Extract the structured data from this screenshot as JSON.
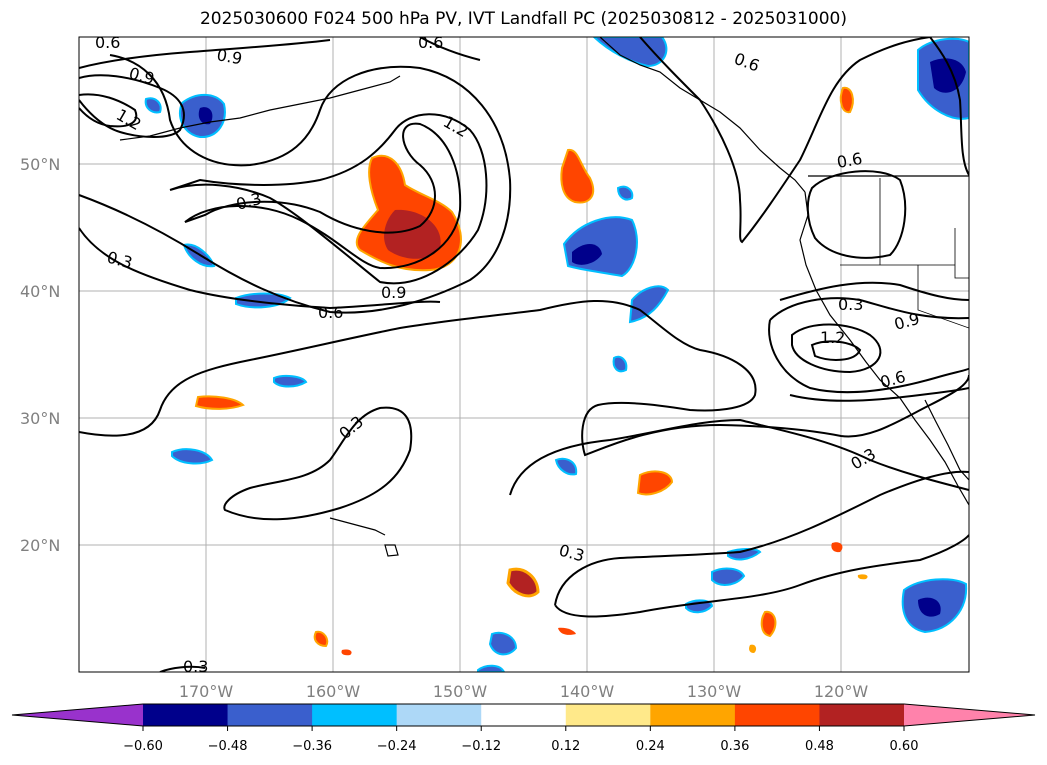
{
  "title": "2025030600 F024 500 hPa PV, IVT Landfall PC (2025030812 - 2025031000)",
  "lat_labels": [
    "50°N",
    "40°N",
    "30°N",
    "20°N"
  ],
  "lon_labels": [
    "170°W",
    "160°W",
    "150°W",
    "140°W",
    "130°W",
    "120°W"
  ],
  "colorbar": {
    "ticks": [
      "−0.60",
      "−0.48",
      "−0.36",
      "−0.24",
      "−0.12",
      "0.12",
      "0.24",
      "0.36",
      "0.48",
      "0.60"
    ],
    "colors": [
      "#9932CC",
      "#00008B",
      "#3A5FCD",
      "#00BFFF",
      "#ADD8F7",
      "#FFFFFF",
      "#FFE98A",
      "#FFA500",
      "#FF4500",
      "#B22222",
      "#FF82AB"
    ]
  },
  "contour_labels": [
    "0.6",
    "0.9",
    "1.2",
    "0.6",
    "0.9",
    "1.2",
    "0.3",
    "0.9",
    "0.6",
    "0.3",
    "0.3",
    "0.6",
    "0.3",
    "0.9",
    "1.2",
    "0.6",
    "0.3",
    "0.3",
    "0.6",
    "0.3"
  ]
}
